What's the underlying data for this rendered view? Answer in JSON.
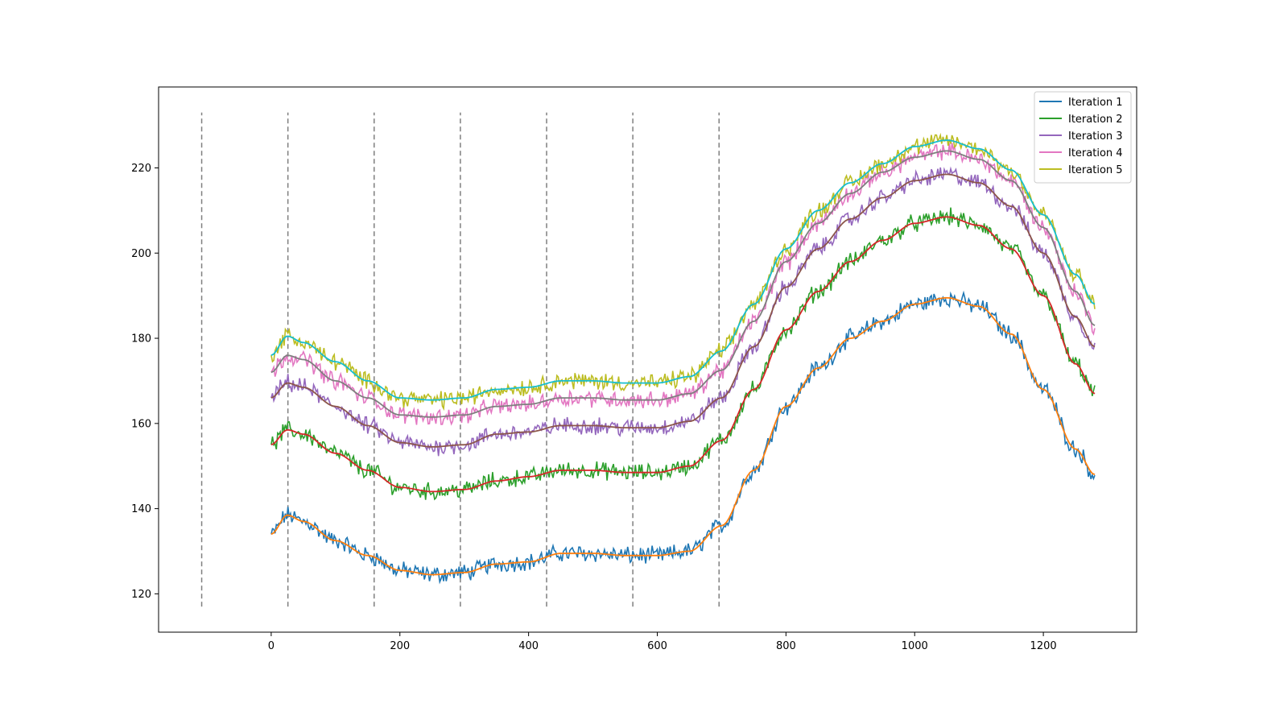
{
  "chart_data": {
    "type": "line",
    "title": "",
    "xlabel": "",
    "ylabel": "",
    "xlim": [
      -175,
      1345
    ],
    "ylim": [
      111,
      239
    ],
    "grid": false,
    "legend_position": "top-right",
    "x_ticks": [
      0,
      200,
      400,
      600,
      800,
      1000,
      1200
    ],
    "y_ticks": [
      120,
      140,
      160,
      180,
      200,
      220
    ],
    "x_tick_labels": [
      "0",
      "200",
      "400",
      "600",
      "800",
      "1000",
      "1200"
    ],
    "y_tick_labels": [
      "120",
      "140",
      "160",
      "180",
      "200",
      "220"
    ],
    "vertical_dashed_lines": {
      "x": [
        -108,
        26,
        160,
        294,
        428,
        562,
        696
      ],
      "y_range": [
        117,
        233
      ],
      "color": "#7f7f7f"
    },
    "x": [
      0,
      25,
      50,
      100,
      150,
      200,
      250,
      300,
      350,
      400,
      450,
      500,
      550,
      600,
      650,
      700,
      750,
      800,
      850,
      900,
      950,
      1000,
      1050,
      1100,
      1150,
      1200,
      1250,
      1280
    ],
    "noise_amplitude": 1.6,
    "series": [
      {
        "name": "Iteration 1",
        "color": "#1f77b4",
        "smooth_color": "#ff7f0e",
        "values": [
          134,
          138.5,
          137,
          132.5,
          129,
          125.5,
          124.5,
          125,
          127,
          127.5,
          129.5,
          129.5,
          129,
          129,
          130,
          136,
          149,
          164,
          173,
          180,
          184,
          188,
          189.5,
          187.5,
          181,
          168,
          154,
          148
        ]
      },
      {
        "name": "Iteration 2",
        "color": "#2ca02c",
        "smooth_color": "#d62728",
        "values": [
          155,
          158.5,
          157.5,
          153,
          149,
          145,
          144,
          144.5,
          146.5,
          147.5,
          149,
          149,
          148.5,
          148.5,
          150,
          156,
          168,
          182,
          191,
          198,
          203,
          207,
          208.5,
          206.5,
          201,
          190,
          174,
          167
        ]
      },
      {
        "name": "Iteration 3",
        "color": "#9467bd",
        "smooth_color": "#8c564b",
        "values": [
          166,
          169.5,
          168.5,
          164,
          159.5,
          155.5,
          154.5,
          155,
          157.5,
          158,
          159.5,
          159.5,
          159,
          159,
          160.5,
          166,
          178,
          192,
          201,
          208,
          213,
          217,
          218.5,
          216.5,
          211,
          200,
          185,
          178
        ]
      },
      {
        "name": "Iteration 4",
        "color": "#e377c2",
        "smooth_color": "#7f7f7f",
        "values": [
          172,
          176,
          175,
          170,
          166,
          162,
          161.5,
          162,
          164,
          164.5,
          166,
          166,
          165.5,
          165.5,
          167,
          172.5,
          184,
          198,
          207,
          214,
          219,
          222.5,
          224,
          222,
          217,
          206,
          191,
          183
        ]
      },
      {
        "name": "Iteration 5",
        "color": "#bcbd22",
        "smooth_color": "#17becf",
        "values": [
          176,
          180.5,
          179,
          174.5,
          170,
          166,
          165.5,
          166,
          168,
          168.5,
          170,
          170,
          169.5,
          169.5,
          171,
          177,
          188,
          201,
          210,
          216.5,
          221,
          225,
          226.5,
          224.5,
          219.5,
          209,
          195,
          188
        ]
      }
    ]
  }
}
